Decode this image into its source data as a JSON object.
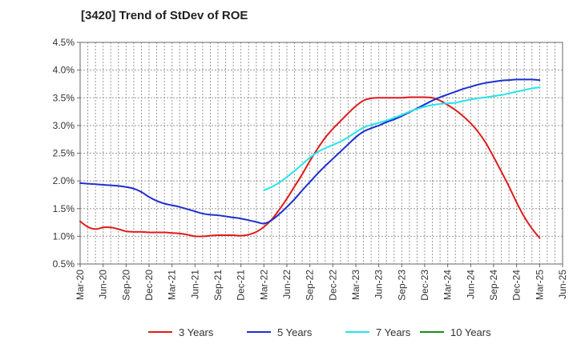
{
  "chart_data": {
    "type": "line",
    "title": "[3420]  Trend of StDev of ROE",
    "xlabel": "",
    "ylabel": "",
    "y_tick_labels": [
      "0.5%",
      "1.0%",
      "1.5%",
      "2.0%",
      "2.5%",
      "3.0%",
      "3.5%",
      "4.0%",
      "4.5%"
    ],
    "y_ticks": [
      0.5,
      1.0,
      1.5,
      2.0,
      2.5,
      3.0,
      3.5,
      4.0,
      4.5
    ],
    "ylim": [
      0.5,
      4.5
    ],
    "x_tick_labels": [
      "Mar-20",
      "Jun-20",
      "Sep-20",
      "Dec-20",
      "Mar-21",
      "Jun-21",
      "Sep-21",
      "Dec-21",
      "Mar-22",
      "Jun-22",
      "Sep-22",
      "Dec-22",
      "Mar-23",
      "Jun-23",
      "Sep-23",
      "Dec-23",
      "Mar-24",
      "Jun-24",
      "Sep-24",
      "Dec-24",
      "Mar-25",
      "Jun-25"
    ],
    "grid": true,
    "legend_position": "bottom",
    "series": [
      {
        "name": "3 Years",
        "color": "#e01b1b",
        "x": [
          "Mar-20",
          "Apr-20",
          "May-20",
          "Jun-20",
          "Jul-20",
          "Aug-20",
          "Sep-20",
          "Oct-20",
          "Nov-20",
          "Dec-20",
          "Jan-21",
          "Feb-21",
          "Mar-21",
          "Apr-21",
          "May-21",
          "Jun-21",
          "Jul-21",
          "Aug-21",
          "Sep-21",
          "Oct-21",
          "Nov-21",
          "Dec-21",
          "Jan-22",
          "Feb-22",
          "Mar-22",
          "Apr-22",
          "May-22",
          "Jun-22",
          "Jul-22",
          "Aug-22",
          "Sep-22",
          "Oct-22",
          "Nov-22",
          "Dec-22",
          "Jan-23",
          "Feb-23",
          "Mar-23",
          "Apr-23",
          "May-23",
          "Jun-23",
          "Jul-23",
          "Aug-23",
          "Sep-23",
          "Oct-23",
          "Nov-23",
          "Dec-23",
          "Jan-24",
          "Feb-24",
          "Mar-24",
          "Apr-24",
          "May-24",
          "Jun-24",
          "Jul-24",
          "Aug-24",
          "Sep-24",
          "Oct-24",
          "Nov-24",
          "Dec-24",
          "Jan-25",
          "Feb-25",
          "Mar-25"
        ],
        "values": [
          1.27,
          1.17,
          1.13,
          1.16,
          1.16,
          1.13,
          1.09,
          1.08,
          1.08,
          1.07,
          1.07,
          1.07,
          1.06,
          1.05,
          1.03,
          1.0,
          1.0,
          1.01,
          1.02,
          1.02,
          1.02,
          1.01,
          1.03,
          1.08,
          1.17,
          1.3,
          1.48,
          1.68,
          1.9,
          2.12,
          2.36,
          2.58,
          2.78,
          2.94,
          3.08,
          3.22,
          3.35,
          3.45,
          3.49,
          3.5,
          3.5,
          3.5,
          3.5,
          3.51,
          3.51,
          3.51,
          3.5,
          3.45,
          3.37,
          3.28,
          3.17,
          3.04,
          2.88,
          2.68,
          2.43,
          2.17,
          1.9,
          1.61,
          1.35,
          1.14,
          0.97
        ]
      },
      {
        "name": "5 Years",
        "color": "#1c2fd0",
        "x": [
          "Mar-20",
          "Apr-20",
          "May-20",
          "Jun-20",
          "Jul-20",
          "Aug-20",
          "Sep-20",
          "Oct-20",
          "Nov-20",
          "Dec-20",
          "Jan-21",
          "Feb-21",
          "Mar-21",
          "Apr-21",
          "May-21",
          "Jun-21",
          "Jul-21",
          "Aug-21",
          "Sep-21",
          "Oct-21",
          "Nov-21",
          "Dec-21",
          "Jan-22",
          "Feb-22",
          "Mar-22",
          "Apr-22",
          "May-22",
          "Jun-22",
          "Jul-22",
          "Aug-22",
          "Sep-22",
          "Oct-22",
          "Nov-22",
          "Dec-22",
          "Jan-23",
          "Feb-23",
          "Mar-23",
          "Apr-23",
          "May-23",
          "Jun-23",
          "Jul-23",
          "Aug-23",
          "Sep-23",
          "Oct-23",
          "Nov-23",
          "Dec-23",
          "Jan-24",
          "Feb-24",
          "Mar-24",
          "Apr-24",
          "May-24",
          "Jun-24",
          "Jul-24",
          "Aug-24",
          "Sep-24",
          "Oct-24",
          "Nov-24",
          "Dec-24",
          "Jan-25",
          "Feb-25",
          "Mar-25"
        ],
        "values": [
          1.96,
          1.95,
          1.94,
          1.93,
          1.92,
          1.91,
          1.89,
          1.86,
          1.8,
          1.71,
          1.64,
          1.59,
          1.56,
          1.53,
          1.49,
          1.45,
          1.41,
          1.39,
          1.38,
          1.36,
          1.34,
          1.32,
          1.29,
          1.26,
          1.23,
          1.29,
          1.4,
          1.53,
          1.67,
          1.83,
          1.98,
          2.13,
          2.27,
          2.4,
          2.53,
          2.66,
          2.79,
          2.89,
          2.95,
          3.0,
          3.06,
          3.11,
          3.17,
          3.24,
          3.31,
          3.38,
          3.45,
          3.51,
          3.56,
          3.61,
          3.66,
          3.7,
          3.74,
          3.77,
          3.79,
          3.81,
          3.82,
          3.83,
          3.83,
          3.83,
          3.82
        ]
      },
      {
        "name": "7 Years",
        "color": "#22e5ec",
        "x": [
          "Mar-22",
          "Apr-22",
          "May-22",
          "Jun-22",
          "Jul-22",
          "Aug-22",
          "Sep-22",
          "Oct-22",
          "Nov-22",
          "Dec-22",
          "Jan-23",
          "Feb-23",
          "Mar-23",
          "Apr-23",
          "May-23",
          "Jun-23",
          "Jul-23",
          "Aug-23",
          "Sep-23",
          "Oct-23",
          "Nov-23",
          "Dec-23",
          "Jan-24",
          "Feb-24",
          "Mar-24",
          "Apr-24",
          "May-24",
          "Jun-24",
          "Jul-24",
          "Aug-24",
          "Sep-24",
          "Oct-24",
          "Nov-24",
          "Dec-24",
          "Jan-25",
          "Feb-25",
          "Mar-25"
        ],
        "values": [
          1.83,
          1.89,
          1.97,
          2.07,
          2.18,
          2.3,
          2.42,
          2.52,
          2.59,
          2.65,
          2.71,
          2.79,
          2.88,
          2.96,
          3.01,
          3.05,
          3.09,
          3.14,
          3.19,
          3.25,
          3.3,
          3.34,
          3.37,
          3.39,
          3.4,
          3.41,
          3.44,
          3.47,
          3.49,
          3.51,
          3.53,
          3.55,
          3.58,
          3.61,
          3.64,
          3.67,
          3.69
        ]
      },
      {
        "name": "10 Years",
        "color": "#1f8a1f",
        "x": [],
        "values": []
      }
    ]
  }
}
